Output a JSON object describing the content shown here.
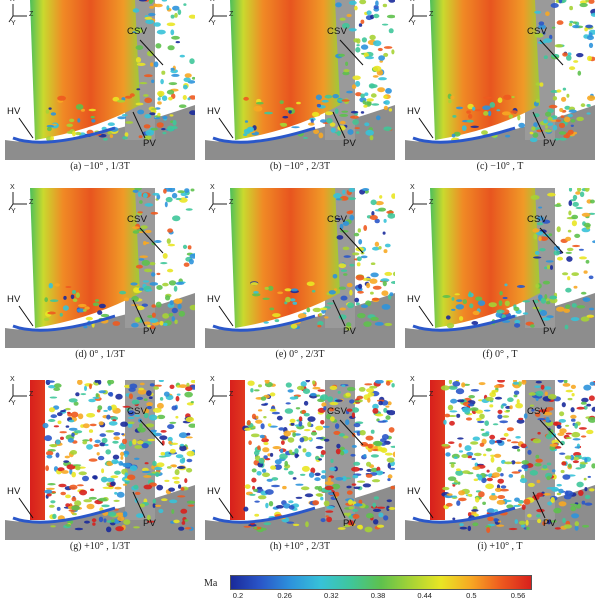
{
  "panels": [
    {
      "caption": "(a) −10° , 1/3T",
      "row": 0
    },
    {
      "caption": "(b) −10° , 2/3T",
      "row": 0
    },
    {
      "caption": "(c) −10° , T",
      "row": 0
    },
    {
      "caption": "(d) 0° , 1/3T",
      "row": 1
    },
    {
      "caption": "(e) 0° , 2/3T",
      "row": 1
    },
    {
      "caption": "(f) 0° , T",
      "row": 1
    },
    {
      "caption": "(g) +10° , 1/3T",
      "row": 2
    },
    {
      "caption": "(h) +10° , 2/3T",
      "row": 2
    },
    {
      "caption": "(i) +10° , T",
      "row": 2
    }
  ],
  "labels": {
    "hv": "HV",
    "pv": "PV",
    "csv": "CSV"
  },
  "axes": {
    "x": "X",
    "y": "Y",
    "z": "Z"
  },
  "colorbar": {
    "title": "Ma",
    "ticks": [
      "0.2",
      "0.26",
      "0.32",
      "0.38",
      "0.44",
      "0.5",
      "0.56"
    ],
    "colors": [
      "#1a2a9b",
      "#2a57c9",
      "#2d93dc",
      "#37c2d8",
      "#3fc69a",
      "#5ec14d",
      "#a6d335",
      "#e9e524",
      "#f7a823",
      "#ee5a1f",
      "#d8201c"
    ]
  }
}
